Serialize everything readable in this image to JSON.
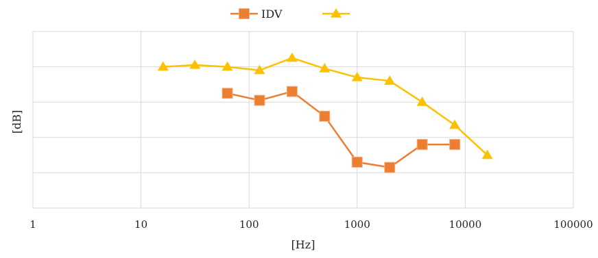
{
  "chart_data": {
    "type": "line",
    "xscale": "log",
    "xlim": [
      1,
      100000
    ],
    "x_ticks": [
      "1",
      "10",
      "100",
      "1000",
      "10000",
      "100000"
    ],
    "ylim": [
      0,
      5
    ],
    "y_gridlines": 5,
    "y_tick_labels_shown": false,
    "grid": true,
    "xlabel": "[Hz]",
    "ylabel": "[dB]",
    "legend_position": "top-center",
    "series": [
      {
        "name": "IDV",
        "color": "#ED7D31",
        "marker": "square",
        "x": [
          63,
          125,
          250,
          500,
          1000,
          2000,
          4000,
          8000
        ],
        "y": [
          3.25,
          3.05,
          3.3,
          2.6,
          1.3,
          1.15,
          1.8,
          1.8
        ]
      },
      {
        "name": "",
        "color": "#FFC000",
        "marker": "triangle",
        "x": [
          16,
          31.5,
          63,
          125,
          250,
          500,
          1000,
          2000,
          4000,
          8000,
          16000
        ],
        "y": [
          4.0,
          4.05,
          4.0,
          3.9,
          4.25,
          3.95,
          3.7,
          3.6,
          3.0,
          2.35,
          1.5
        ]
      }
    ]
  }
}
